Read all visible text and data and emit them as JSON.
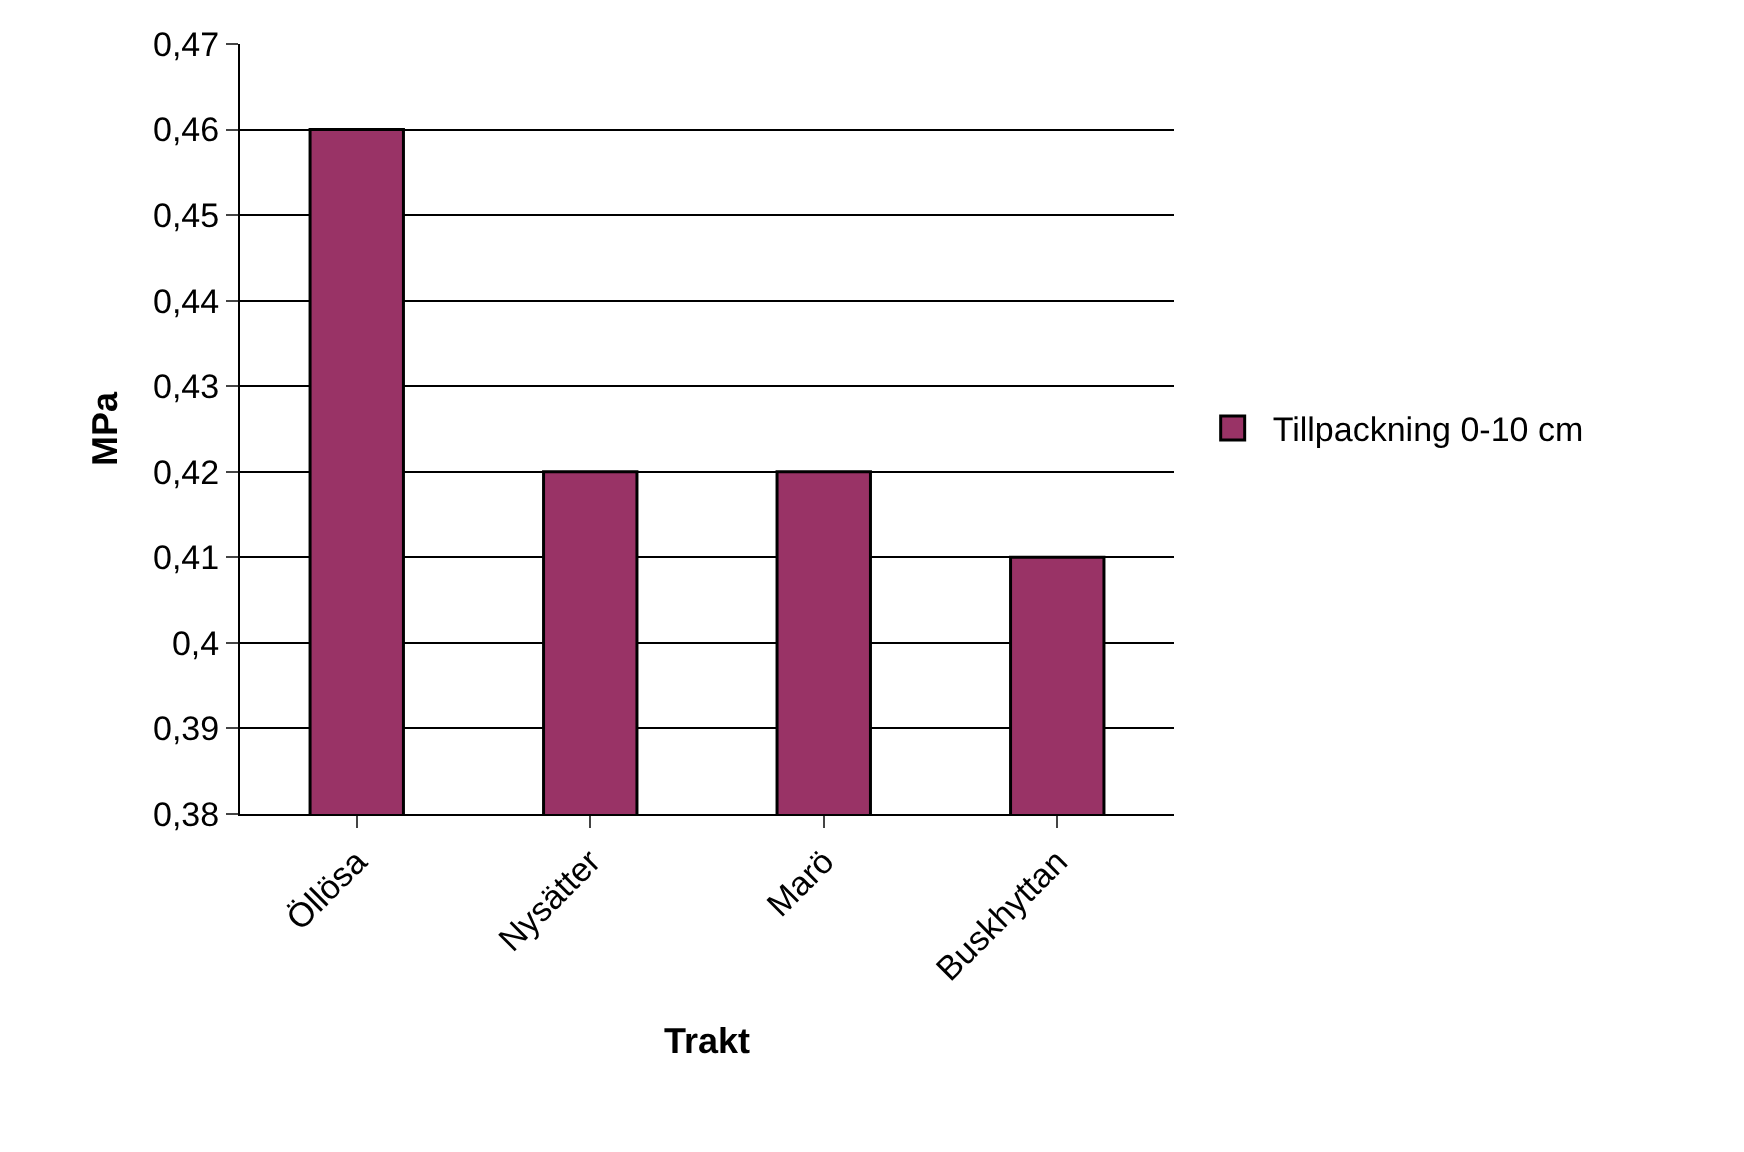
{
  "chart_data": {
    "type": "bar",
    "xlabel": "Trakt",
    "ylabel": "MPa",
    "categories": [
      "Öllösa",
      "Nysätter",
      "Marö",
      "Buskhyttan"
    ],
    "series": [
      {
        "name": "Tillpackning 0-10 cm",
        "color": "#993366",
        "values": [
          0.46,
          0.42,
          0.42,
          0.41
        ]
      }
    ],
    "ylim": [
      0.38,
      0.47
    ],
    "yticks": [
      {
        "value": 0.38,
        "label": "0,38"
      },
      {
        "value": 0.39,
        "label": "0,39"
      },
      {
        "value": 0.4,
        "label": "0,4"
      },
      {
        "value": 0.41,
        "label": "0,41"
      },
      {
        "value": 0.42,
        "label": "0,42"
      },
      {
        "value": 0.43,
        "label": "0,43"
      },
      {
        "value": 0.44,
        "label": "0,44"
      },
      {
        "value": 0.45,
        "label": "0,45"
      },
      {
        "value": 0.46,
        "label": "0,46"
      },
      {
        "value": 0.47,
        "label": "0,47"
      }
    ],
    "grid": "y",
    "legend": "right"
  }
}
